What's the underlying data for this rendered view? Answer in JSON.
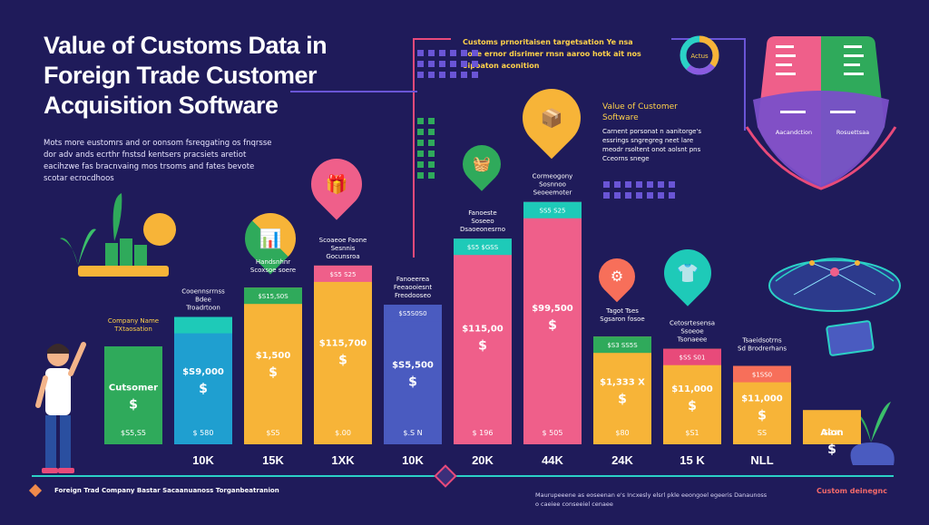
{
  "title": "Value of Customs Data in Foreign Trade Customer Acquisition Software",
  "subtitle": "Mots more eustomrs and or oonsom fsreqgating os fnqrsse dor adv ands ecrthr fnstsd kentsers pracsiets aretiot eacihzwe fas bracnvaing mos trsoms and fates bevote scotar ecrocdhoos",
  "top_caption": "Customs prnoritaisen targetsation Ye nsa aose ernor disrimer rnsn aaroo hotk ait nos oipoaton aconition",
  "value_caption": "Value of Customer Software",
  "value_caption_sub": "Carnent porsonat n aanitorge's essrings sngregreg neet lare meodr rsoltent onot aolsnt pns Cceorns snege",
  "footer_left": "Foreign Trad Company Bastar Sacaanuanoss Torganbeatranion",
  "footer_right": "Maurupeeene as eoseenan e's Incxesly elsrl pkle eeongoel egeeris Danaunoss o caeiee conseeiel cenaee",
  "footer_tag": "Custom deinegnc",
  "donut_label": "Actus",
  "shield": {
    "left_label": "Aacandction",
    "right_label": "Rosuettsaa"
  },
  "colors": {
    "bg": "#1f1b5a",
    "axis": "#2bd1c6",
    "accent": "#e84a7a"
  },
  "chart_data": {
    "type": "bar",
    "title": "Value of Customs Data in Foreign Trade Customer Acquisition Software",
    "categories": [
      "",
      "10K",
      "15K",
      "1XK",
      "10K",
      "20K",
      "44K",
      "24K",
      "15 K",
      "NLL",
      ""
    ],
    "values": [
      40,
      52,
      64,
      73,
      57,
      84,
      99,
      44,
      39,
      32,
      14
    ],
    "top_labels": [
      "Company Name TXtaosation",
      "Cooennsrrnss Bdee Troadrtoon",
      "Handsnhnr Scoxsoe soere",
      "Scoaeoe Faone Sesnnis Gocunsroa",
      "Fanoeerea Feeaooiesnt Freodooseo",
      "Fanoeste Soseeo Dsaoeonesrno Hsay Boaneeg",
      "Cormeogony Sosnnoo Seoeemoter",
      "Tagot Tses Sgsaron fosoe",
      "Cetosrtesensa Ssoeoe Tsonaeee",
      "Tsaeidsotrns Sd Brodrerhans",
      ""
    ],
    "band_labels": [
      "",
      "",
      "$S15,S0S",
      "$S5 S25",
      "$S5S0S0",
      "$S5 $GSS",
      "SS5 S25",
      "$S3 SS5S",
      "$SS S01",
      "$1SS0",
      ""
    ],
    "mid_labels": [
      "Cutsomer",
      "$S9,000",
      "$1,500",
      "$115,700",
      "$S5,500",
      "$115,00",
      "$99,500",
      "$1,333 X",
      "$11,000",
      "$11,000",
      "Aion"
    ],
    "bottom_labels": [
      "$S5,S5",
      "$ 580",
      "$S5",
      "$.00",
      "$.S N",
      "$ 196",
      "$ 505",
      "$80",
      "$S1",
      "SS",
      "S2 X"
    ],
    "colors": [
      "#2faa5b",
      "#1f9fd0",
      "#f7b438",
      "#f7b438",
      "#4a5bc0",
      "#ef5f8a",
      "#ef5f8a",
      "#f7b438",
      "#f7b438",
      "#f7b438",
      "#f7b438"
    ],
    "band_colors": [
      "",
      "#1ecab8",
      "#2faa5b",
      "#ef5f8a",
      "#4a5bc0",
      "#1ecab8",
      "#1ecab8",
      "#2faa5b",
      "#e84a7a",
      "#f76f5a",
      ""
    ],
    "ylim": [
      0,
      100
    ],
    "xlabel": "",
    "ylabel": ""
  }
}
